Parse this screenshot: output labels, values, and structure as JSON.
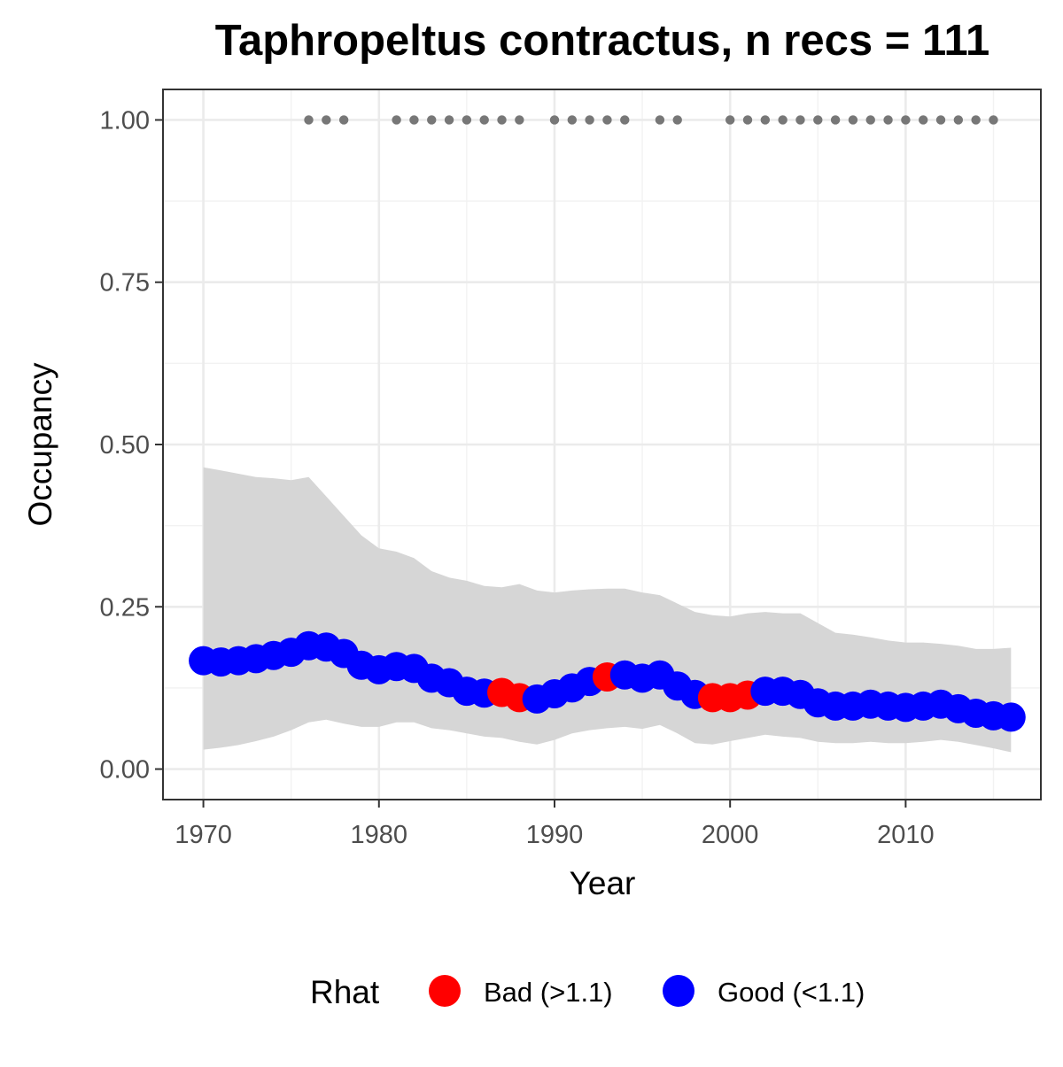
{
  "chart_data": {
    "type": "line",
    "title": "Taphropeltus contractus, n recs = 111",
    "xlabel": "Year",
    "ylabel": "Occupancy",
    "xlim": [
      1967.7,
      2017.7
    ],
    "ylim": [
      -0.047,
      1.047
    ],
    "x_ticks": [
      1970,
      1980,
      1990,
      2000,
      2010
    ],
    "x_tick_labels": [
      "1970",
      "1980",
      "1990",
      "2000",
      "2010"
    ],
    "y_ticks": [
      0.0,
      0.25,
      0.5,
      0.75,
      1.0
    ],
    "y_tick_labels": [
      "0.00",
      "0.25",
      "0.50",
      "0.75",
      "1.00"
    ],
    "grid": true,
    "legend": {
      "title": "Rhat",
      "position": "bottom",
      "entries": [
        {
          "label": "Bad (>1.1)",
          "color": "#ff0000"
        },
        {
          "label": "Good (<1.1)",
          "color": "#0000ff"
        }
      ]
    },
    "colors": {
      "bad": "#ff0000",
      "good": "#0000ff",
      "ribbon": "#d6d6d6",
      "record": "#777777"
    },
    "x": [
      1970,
      1971,
      1972,
      1973,
      1974,
      1975,
      1976,
      1977,
      1978,
      1979,
      1980,
      1981,
      1982,
      1983,
      1984,
      1985,
      1986,
      1987,
      1988,
      1989,
      1990,
      1991,
      1992,
      1993,
      1994,
      1995,
      1996,
      1997,
      1998,
      1999,
      2000,
      2001,
      2002,
      2003,
      2004,
      2005,
      2006,
      2007,
      2008,
      2009,
      2010,
      2011,
      2012,
      2013,
      2014,
      2015,
      2016
    ],
    "series": [
      {
        "values": [
          0.167,
          0.165,
          0.167,
          0.17,
          0.175,
          0.18,
          0.19,
          0.188,
          0.178,
          0.16,
          0.153,
          0.158,
          0.155,
          0.14,
          0.133,
          0.12,
          0.117,
          0.118,
          0.11,
          0.108,
          0.116,
          0.125,
          0.135,
          0.142,
          0.145,
          0.14,
          0.145,
          0.128,
          0.115,
          0.11,
          0.11,
          0.114,
          0.12,
          0.12,
          0.115,
          0.102,
          0.097,
          0.097,
          0.1,
          0.097,
          0.095,
          0.097,
          0.1,
          0.093,
          0.086,
          0.082,
          0.08
        ],
        "rhat": [
          "Good",
          "Good",
          "Good",
          "Good",
          "Good",
          "Good",
          "Good",
          "Good",
          "Good",
          "Good",
          "Good",
          "Good",
          "Good",
          "Good",
          "Good",
          "Good",
          "Good",
          "Bad",
          "Bad",
          "Good",
          "Good",
          "Good",
          "Good",
          "Bad",
          "Good",
          "Good",
          "Good",
          "Good",
          "Good",
          "Bad",
          "Bad",
          "Bad",
          "Good",
          "Good",
          "Good",
          "Good",
          "Good",
          "Good",
          "Good",
          "Good",
          "Good",
          "Good",
          "Good",
          "Good",
          "Good",
          "Good",
          "Good"
        ],
        "ci_lower": [
          0.03,
          0.033,
          0.037,
          0.043,
          0.05,
          0.06,
          0.072,
          0.076,
          0.07,
          0.065,
          0.065,
          0.072,
          0.072,
          0.063,
          0.06,
          0.055,
          0.05,
          0.048,
          0.042,
          0.038,
          0.045,
          0.055,
          0.06,
          0.063,
          0.065,
          0.062,
          0.068,
          0.055,
          0.04,
          0.038,
          0.043,
          0.048,
          0.053,
          0.05,
          0.048,
          0.042,
          0.04,
          0.04,
          0.042,
          0.04,
          0.04,
          0.042,
          0.045,
          0.042,
          0.037,
          0.032,
          0.026
        ],
        "ci_upper": [
          0.465,
          0.46,
          0.455,
          0.45,
          0.448,
          0.445,
          0.45,
          0.42,
          0.39,
          0.36,
          0.34,
          0.335,
          0.325,
          0.305,
          0.295,
          0.29,
          0.282,
          0.28,
          0.285,
          0.275,
          0.272,
          0.275,
          0.277,
          0.278,
          0.278,
          0.272,
          0.268,
          0.255,
          0.242,
          0.237,
          0.235,
          0.24,
          0.242,
          0.24,
          0.24,
          0.225,
          0.21,
          0.207,
          0.203,
          0.198,
          0.195,
          0.195,
          0.193,
          0.19,
          0.185,
          0.185,
          0.187
        ]
      }
    ],
    "records_y": 1.0,
    "record_years": [
      1976,
      1977,
      1978,
      1981,
      1982,
      1983,
      1984,
      1985,
      1986,
      1987,
      1988,
      1990,
      1991,
      1992,
      1993,
      1994,
      1996,
      1997,
      2000,
      2001,
      2002,
      2003,
      2004,
      2005,
      2006,
      2007,
      2008,
      2009,
      2010,
      2011,
      2012,
      2013,
      2014,
      2015
    ]
  }
}
